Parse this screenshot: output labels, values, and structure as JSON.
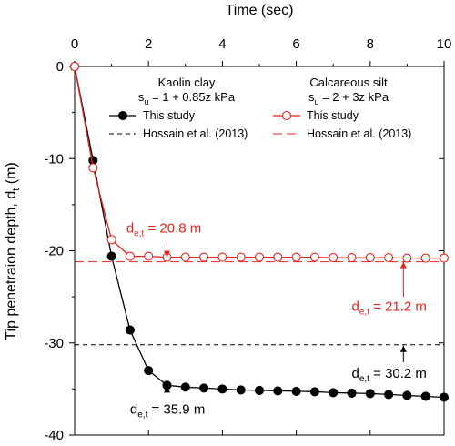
{
  "chart_data": {
    "type": "line",
    "x_label": "Time (sec)",
    "y_label_main": "Tip penetraion depth, d",
    "y_label_sub": "t",
    "y_label_unit": " (m)",
    "xlim": [
      0,
      10
    ],
    "ylim": [
      -40,
      0
    ],
    "x_ticks": [
      0,
      2,
      4,
      6,
      8,
      10
    ],
    "y_ticks": [
      0,
      -10,
      -20,
      -30,
      -40
    ],
    "x_axis_position": "top",
    "grid": false,
    "legend_groups": [
      {
        "title": "Kaolin clay",
        "formula_prefix": "s",
        "formula_sub": "u",
        "formula_rest": " = 1 + 0.85z kPa",
        "color": "#000000"
      },
      {
        "title": "Calcareous silt",
        "formula_prefix": "s",
        "formula_sub": "u",
        "formula_rest": " = 2 + 3z kPa",
        "color": "#e8231c"
      }
    ],
    "series": [
      {
        "name": "This study",
        "group": 0,
        "color": "#000000",
        "marker": "filled-circle",
        "x": [
          0,
          0.5,
          1.0,
          1.5,
          2.0,
          2.5,
          3.0,
          3.5,
          4.0,
          4.5,
          5.0,
          5.5,
          6.0,
          6.5,
          7.0,
          7.5,
          8.0,
          8.5,
          9.0,
          9.5,
          10.0
        ],
        "y": [
          0,
          -10.2,
          -20.6,
          -28.6,
          -33.0,
          -34.6,
          -34.8,
          -34.9,
          -35.0,
          -35.1,
          -35.15,
          -35.2,
          -35.25,
          -35.3,
          -35.4,
          -35.45,
          -35.5,
          -35.6,
          -35.7,
          -35.8,
          -35.9
        ]
      },
      {
        "name": "Hossain et al. (2013)",
        "group": 0,
        "color": "#000000",
        "style": "dashed",
        "y_const": -30.2
      },
      {
        "name": "This study",
        "group": 1,
        "color": "#e8231c",
        "marker": "open-circle",
        "x": [
          0,
          0.5,
          1.0,
          1.5,
          2.0,
          2.5,
          3.0,
          3.5,
          4.0,
          4.5,
          5.0,
          5.5,
          6.0,
          6.5,
          7.0,
          7.5,
          8.0,
          8.5,
          9.0,
          9.5,
          10.0
        ],
        "y": [
          0,
          -11.0,
          -18.8,
          -20.6,
          -20.6,
          -20.7,
          -20.7,
          -20.7,
          -20.7,
          -20.7,
          -20.7,
          -20.7,
          -20.7,
          -20.7,
          -20.75,
          -20.75,
          -20.75,
          -20.75,
          -20.8,
          -20.8,
          -20.8
        ]
      },
      {
        "name": "Hossain et al. (2013)",
        "group": 1,
        "color": "#e8231c",
        "style": "long-dash",
        "y_const": -21.2
      }
    ],
    "annotations": [
      {
        "prefix": "d",
        "sub": "e,t",
        "rest": " = 20.8 m",
        "color": "#e8231c",
        "x": 1.4,
        "y": -18.0,
        "arrow_to": [
          2.5,
          -20.7
        ],
        "arrow_from": [
          2.5,
          -19.1
        ],
        "kind": "red-top"
      },
      {
        "prefix": "d",
        "sub": "e,t",
        "rest": " = 21.2 m",
        "color": "#e8231c",
        "x": 7.5,
        "y": -26.5,
        "arrow_to": [
          8.9,
          -21.2
        ],
        "arrow_from": [
          8.9,
          -25.0
        ],
        "kind": "red-bottom"
      },
      {
        "prefix": "d",
        "sub": "e,t",
        "rest": " = 30.2 m",
        "color": "#000000",
        "x": 7.5,
        "y": -33.8,
        "arrow_to": [
          8.9,
          -30.3
        ],
        "arrow_from": [
          8.9,
          -32.1
        ],
        "kind": "black-right"
      },
      {
        "prefix": "d",
        "sub": "e,t",
        "rest": " = 35.9 m",
        "color": "#000000",
        "x": 1.5,
        "y": -37.7,
        "arrow_to": [
          2.5,
          -34.7
        ],
        "arrow_from": [
          2.5,
          -36.3
        ],
        "kind": "black-bottom"
      }
    ]
  }
}
